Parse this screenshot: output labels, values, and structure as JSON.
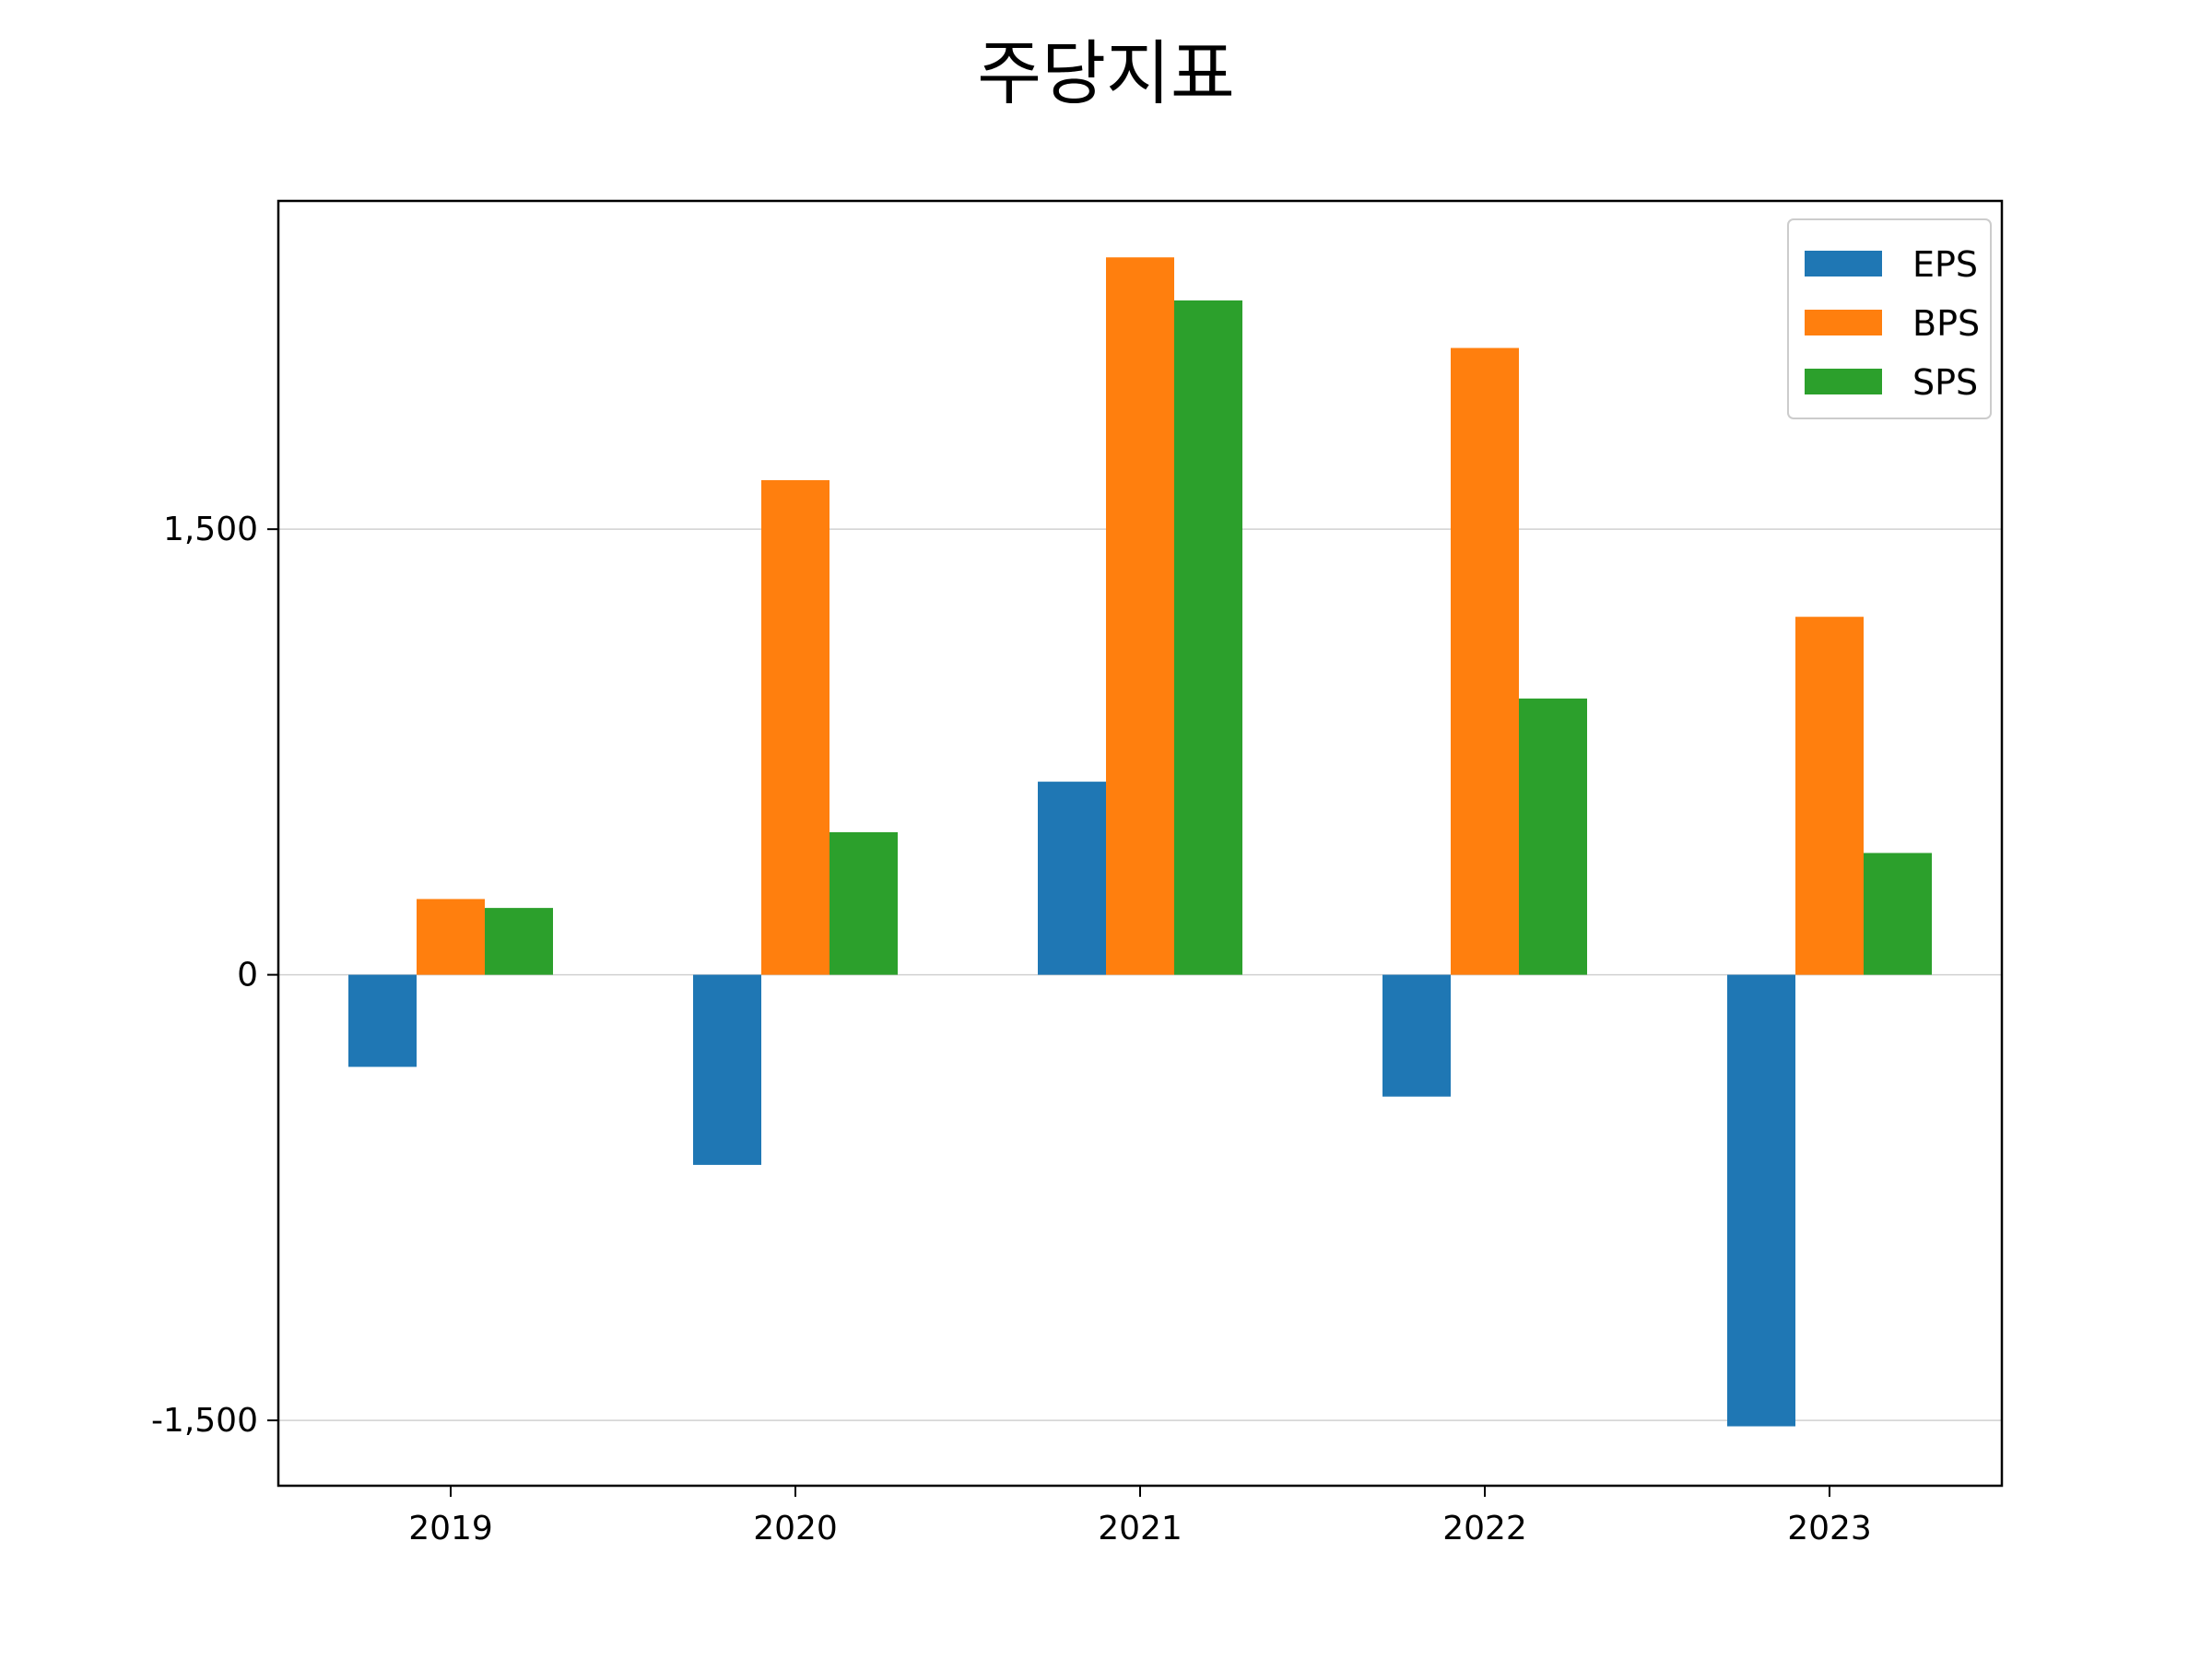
{
  "chart_data": {
    "type": "bar",
    "title": "주당지표",
    "xlabel": "",
    "ylabel": "",
    "categories": [
      "2019",
      "2020",
      "2021",
      "2022",
      "2023"
    ],
    "series": [
      {
        "name": "EPS",
        "color": "#1f77b4",
        "values": [
          -310,
          -640,
          650,
          -410,
          -1520
        ]
      },
      {
        "name": "BPS",
        "color": "#ff7f0e",
        "values": [
          255,
          1665,
          2415,
          2110,
          1205
        ]
      },
      {
        "name": "SPS",
        "color": "#2ca02c",
        "values": [
          225,
          480,
          2270,
          930,
          410
        ]
      }
    ],
    "ylim": [
      -1720,
      2605
    ],
    "yticks": [
      -1500,
      0,
      1500
    ],
    "ytick_labels": [
      "-1,500",
      "0",
      "1,500"
    ],
    "grid": "horizontal",
    "legend": "top-right"
  }
}
